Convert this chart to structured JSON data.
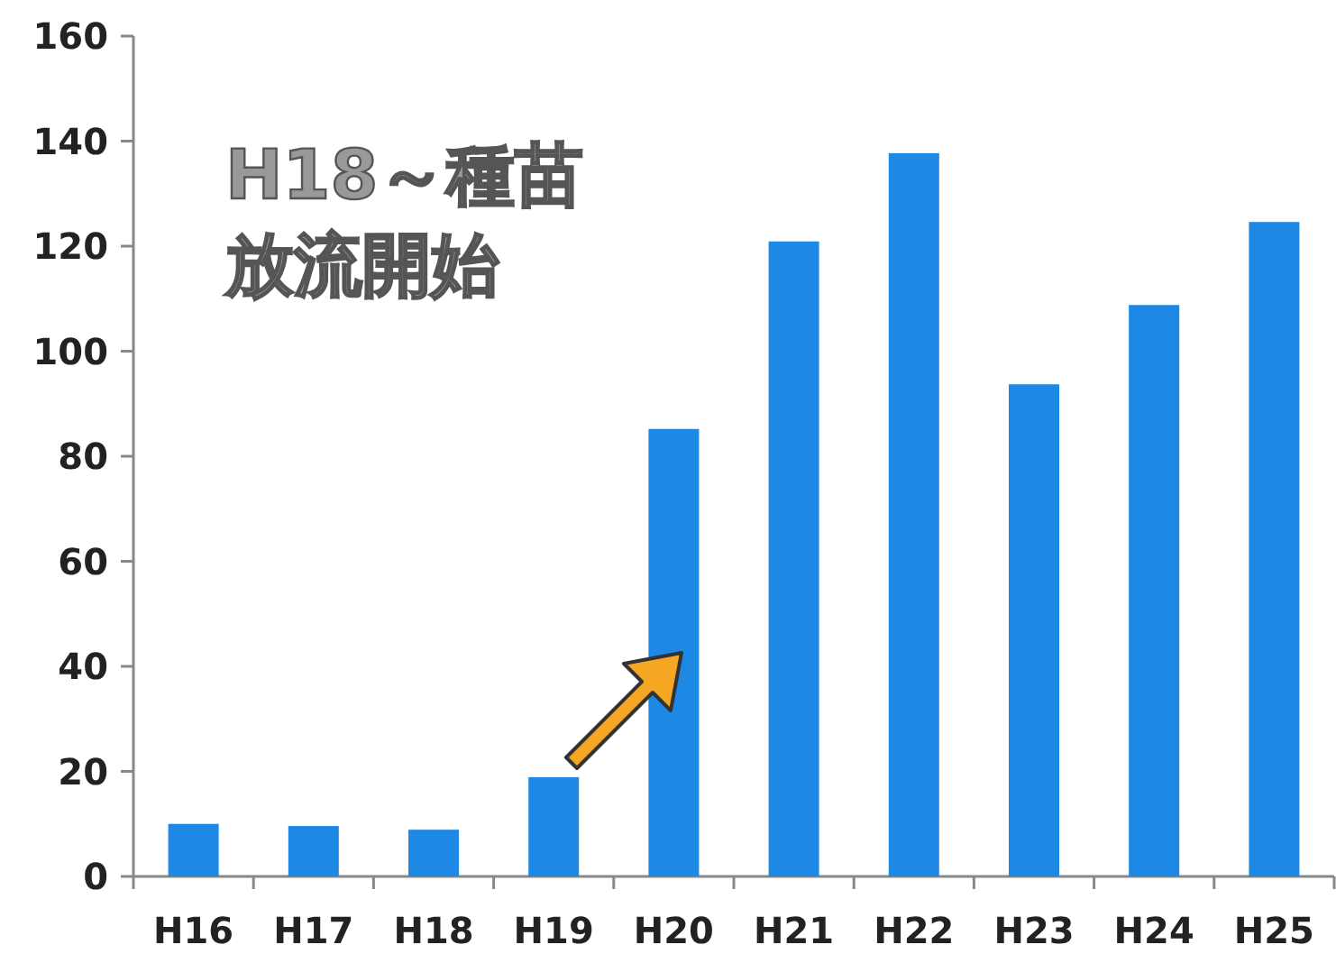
{
  "chart_data": {
    "type": "bar",
    "categories": [
      "H16",
      "H17",
      "H18",
      "H19",
      "H20",
      "H21",
      "H22",
      "H23",
      "H24",
      "H25"
    ],
    "values": [
      10,
      9.6,
      8.9,
      18.9,
      85.2,
      120.9,
      137.7,
      93.7,
      108.8,
      124.6
    ],
    "color": "#1e88e5",
    "ylim": [
      0,
      160
    ],
    "yticks": [
      0,
      20,
      40,
      60,
      80,
      100,
      120,
      140,
      160
    ],
    "grid": false,
    "annotations": [
      "H18～種苗",
      "放流開始"
    ]
  }
}
